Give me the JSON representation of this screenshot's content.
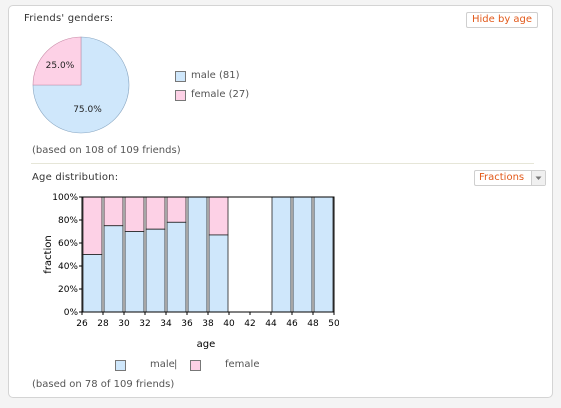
{
  "genders": {
    "title": "Friends' genders:",
    "hide_button": "Hide by age",
    "note": "(based on 108 of 109 friends)",
    "legend": [
      {
        "label": "male (81)",
        "color": "#cfe7fb"
      },
      {
        "label": "female (27)",
        "color": "#fdd1e6"
      }
    ]
  },
  "age": {
    "title": "Age distribution:",
    "mode_select": "Fractions",
    "note": "(based on 78 of 109 friends)",
    "legend": {
      "male": "male",
      "separator": "|",
      "female": "female"
    }
  },
  "colors": {
    "male": "#cfe7fb",
    "female": "#fdd1e6",
    "accent": "#e2591a"
  },
  "chart_data": [
    {
      "type": "pie",
      "labels": [
        "male",
        "female"
      ],
      "values": [
        75.0,
        25.0
      ],
      "slice_labels": [
        "75.0%",
        "25.0%"
      ],
      "colors": [
        "#cfe7fb",
        "#fdd1e6"
      ]
    },
    {
      "type": "bar",
      "stacked": true,
      "xlabel": "age",
      "ylabel": "fraction",
      "x_ticks": [
        "26",
        "28",
        "30",
        "32",
        "34",
        "36",
        "38",
        "40",
        "42",
        "44",
        "46",
        "48",
        "50"
      ],
      "y_ticks": [
        "0%",
        "20%",
        "40%",
        "60%",
        "80%",
        "100%"
      ],
      "ylim": [
        0,
        100
      ],
      "bins": [
        26,
        28,
        30,
        32,
        34,
        36,
        38,
        40,
        42,
        44,
        46,
        48
      ],
      "series": [
        {
          "name": "male",
          "color": "#cfe7fb",
          "values": [
            50,
            75,
            70,
            72,
            78,
            100,
            67,
            null,
            null,
            100,
            100,
            100
          ]
        },
        {
          "name": "female",
          "color": "#fdd1e6",
          "values": [
            50,
            25,
            30,
            28,
            22,
            0,
            33,
            null,
            null,
            0,
            0,
            0
          ]
        }
      ],
      "grid": false,
      "legend": "bottom"
    }
  ]
}
